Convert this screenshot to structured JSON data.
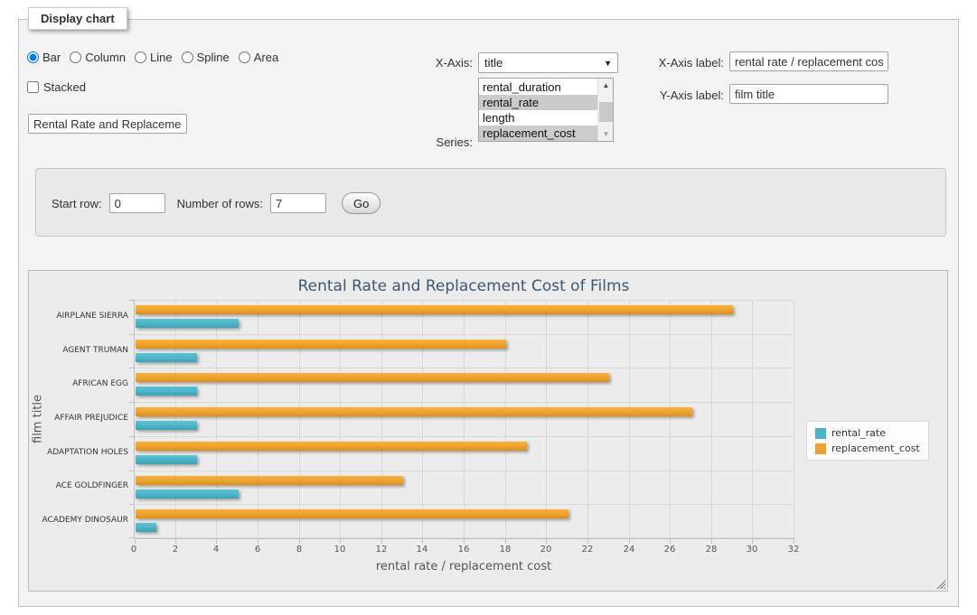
{
  "panel": {
    "title": "Display chart",
    "chart_types": [
      {
        "label": "Bar",
        "checked": true
      },
      {
        "label": "Column",
        "checked": false
      },
      {
        "label": "Line",
        "checked": false
      },
      {
        "label": "Spline",
        "checked": false
      },
      {
        "label": "Area",
        "checked": false
      }
    ],
    "stacked": {
      "label": "Stacked",
      "checked": false
    },
    "chart_title_input_value": "Rental Rate and Replacement Cost of Films",
    "x_axis": {
      "label": "X-Axis:",
      "selected_option": "title"
    },
    "series_select": {
      "label": "Series:",
      "options": [
        {
          "label": "rental_duration",
          "selected": false
        },
        {
          "label": "rental_rate",
          "selected": true
        },
        {
          "label": "length",
          "selected": false
        },
        {
          "label": "replacement_cost",
          "selected": true
        }
      ]
    },
    "x_axis_label": {
      "label": "X-Axis label:",
      "value": "rental rate / replacement cost"
    },
    "y_axis_label": {
      "label": "Y-Axis label:",
      "value": "film title"
    }
  },
  "row_controls": {
    "start_row": {
      "label": "Start row:",
      "value": "0"
    },
    "number_of_rows": {
      "label": "Number of rows:",
      "value": "7"
    },
    "go_button_label": "Go"
  },
  "chart_data": {
    "type": "bar",
    "orientation": "horizontal",
    "title": "Rental Rate and Replacement Cost of Films",
    "xlabel": "rental rate / replacement cost",
    "ylabel": "film title",
    "xlim": [
      0,
      32
    ],
    "xtick_step": 2,
    "grid": true,
    "legend_position": "right",
    "categories": [
      "AIRPLANE SIERRA",
      "AGENT TRUMAN",
      "AFRICAN EGG",
      "AFFAIR PREJUDICE",
      "ADAPTATION HOLES",
      "ACE GOLDFINGER",
      "ACADEMY DINOSAUR"
    ],
    "series": [
      {
        "name": "rental_rate",
        "color": "#4DB3C6",
        "values": [
          4.99,
          2.99,
          2.99,
          2.99,
          2.99,
          4.99,
          0.99
        ]
      },
      {
        "name": "replacement_cost",
        "color": "#EDA22B",
        "values": [
          28.99,
          17.99,
          22.99,
          26.99,
          18.99,
          12.99,
          20.99
        ]
      }
    ],
    "series_draw_order_top_to_bottom": [
      "replacement_cost",
      "rental_rate"
    ]
  }
}
